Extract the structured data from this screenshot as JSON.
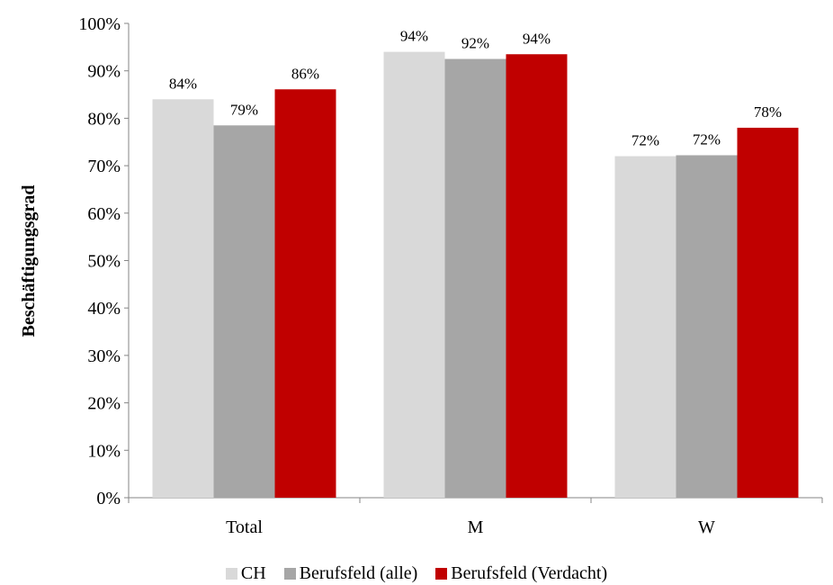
{
  "chart_data": {
    "type": "bar",
    "categories": [
      "Total",
      "M",
      "W"
    ],
    "series": [
      {
        "name": "CH",
        "values": [
          84,
          94,
          72
        ],
        "labels": [
          "84%",
          "94%",
          "72%"
        ],
        "color": "#d9d9d9"
      },
      {
        "name": "Berufsfeld (alle)",
        "values": [
          78.5,
          92.5,
          72.2
        ],
        "labels": [
          "79%",
          "92%",
          "72%"
        ],
        "color": "#a6a6a6"
      },
      {
        "name": "Berufsfeld (Verdacht)",
        "values": [
          86.1,
          93.5,
          78
        ],
        "labels": [
          "86%",
          "94%",
          "78%"
        ],
        "color": "#c00000"
      }
    ],
    "ylabel": "Beschäftigungsgrad",
    "xlabel": "",
    "ylim": [
      0,
      100
    ],
    "yticks": [
      "0%",
      "10%",
      "20%",
      "30%",
      "40%",
      "50%",
      "60%",
      "70%",
      "80%",
      "90%",
      "100%"
    ],
    "grid": false,
    "legend_position": "bottom"
  }
}
